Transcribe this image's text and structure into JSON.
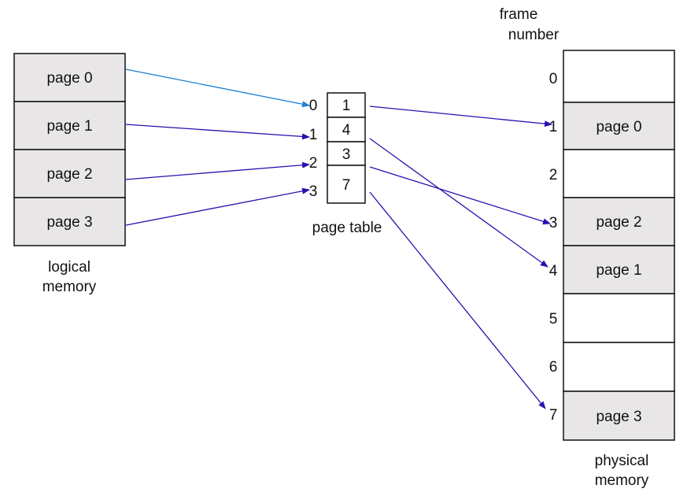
{
  "logical_memory": {
    "pages": [
      "page 0",
      "page 1",
      "page 2",
      "page 3"
    ],
    "caption_line1": "logical",
    "caption_line2": "memory"
  },
  "page_table": {
    "indices": [
      "0",
      "1",
      "2",
      "3"
    ],
    "frames": [
      "1",
      "4",
      "3",
      "7"
    ],
    "caption": "page table"
  },
  "physical_memory": {
    "header_line1": "frame",
    "header_line2": "number",
    "frame_numbers": [
      "0",
      "1",
      "2",
      "3",
      "4",
      "5",
      "6",
      "7"
    ],
    "frames": [
      "",
      "page 0",
      "",
      "page 2",
      "page 1",
      "",
      "",
      "page 3"
    ],
    "caption_line1": "physical",
    "caption_line2": "memory"
  },
  "colors": {
    "cell_fill": "#e8e6e6",
    "empty_fill": "#ffffff",
    "arrow": "#2a0fb0",
    "arrow_first": "#1a7fd8"
  }
}
